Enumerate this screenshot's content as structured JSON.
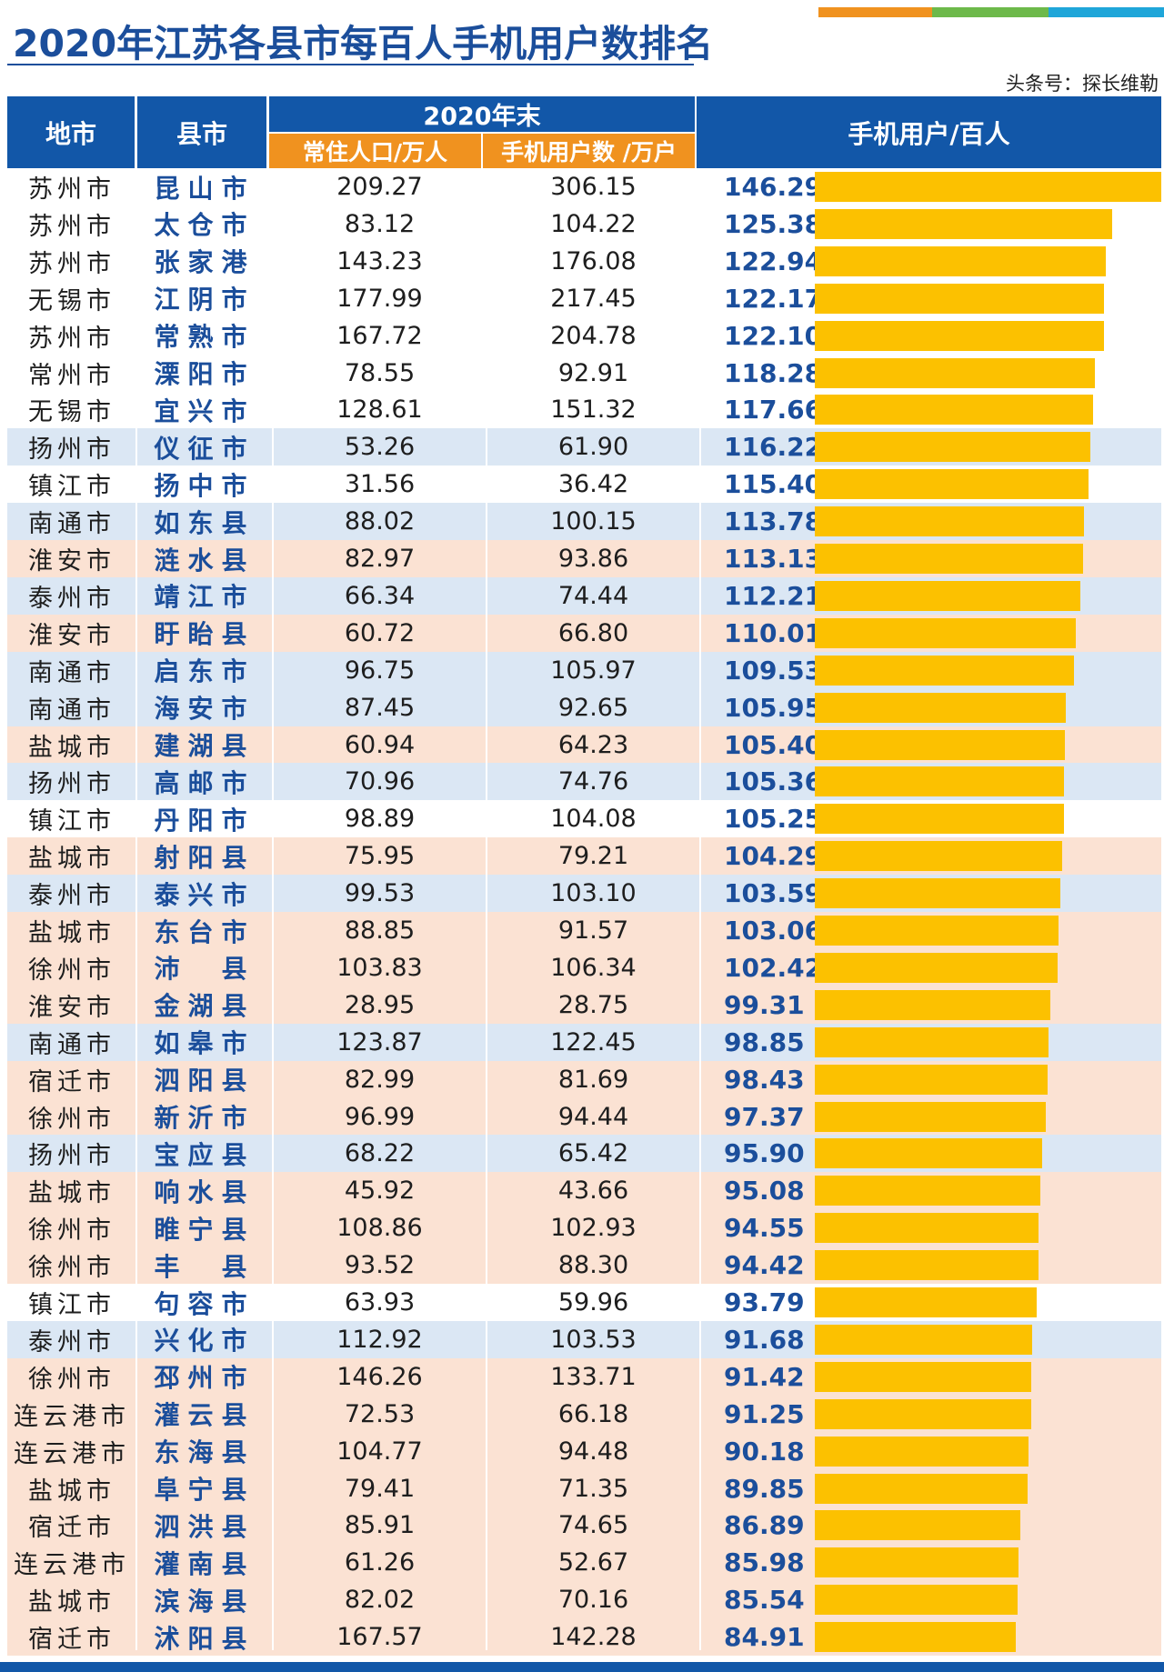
{
  "title": "2020年江苏各县市每百人手机用户数排名",
  "source": "头条号：探长维勒",
  "colors": {
    "blue": "#1257a8",
    "orange": "#f0921f",
    "bar": "#fcc100",
    "row_blue": "#dbe7f4",
    "row_peach": "#fbe2d3",
    "row_white": "#ffffff"
  },
  "header": {
    "city": "地市",
    "county": "县市",
    "year_group": "2020年末",
    "population": "常住人口/万人",
    "users": "手机用户数 /万户",
    "per100": "手机用户/百人"
  },
  "chart_data": {
    "type": "table",
    "value_axis": [
      0,
      146.29
    ],
    "columns": [
      "地市",
      "县市",
      "常住人口/万人",
      "手机用户数 /万户",
      "手机用户/百人"
    ],
    "rows": [
      {
        "city": "苏州市",
        "county": "昆山市",
        "pop": "209.27",
        "users": "306.15",
        "value": 146.29,
        "shade": "white"
      },
      {
        "city": "苏州市",
        "county": "太仓市",
        "pop": "83.12",
        "users": "104.22",
        "value": 125.38,
        "shade": "white"
      },
      {
        "city": "苏州市",
        "county": "张家港",
        "pop": "143.23",
        "users": "176.08",
        "value": 122.94,
        "shade": "white"
      },
      {
        "city": "无锡市",
        "county": "江阴市",
        "pop": "177.99",
        "users": "217.45",
        "value": 122.17,
        "shade": "white"
      },
      {
        "city": "苏州市",
        "county": "常熟市",
        "pop": "167.72",
        "users": "204.78",
        "value": 122.1,
        "shade": "white"
      },
      {
        "city": "常州市",
        "county": "溧阳市",
        "pop": "78.55",
        "users": "92.91",
        "value": 118.28,
        "shade": "white"
      },
      {
        "city": "无锡市",
        "county": "宜兴市",
        "pop": "128.61",
        "users": "151.32",
        "value": 117.66,
        "shade": "white"
      },
      {
        "city": "扬州市",
        "county": "仪征市",
        "pop": "53.26",
        "users": "61.90",
        "value": 116.22,
        "shade": "blue"
      },
      {
        "city": "镇江市",
        "county": "扬中市",
        "pop": "31.56",
        "users": "36.42",
        "value": 115.4,
        "shade": "white"
      },
      {
        "city": "南通市",
        "county": "如东县",
        "pop": "88.02",
        "users": "100.15",
        "value": 113.78,
        "shade": "blue"
      },
      {
        "city": "淮安市",
        "county": "涟水县",
        "pop": "82.97",
        "users": "93.86",
        "value": 113.13,
        "shade": "peach"
      },
      {
        "city": "泰州市",
        "county": "靖江市",
        "pop": "66.34",
        "users": "74.44",
        "value": 112.21,
        "shade": "blue"
      },
      {
        "city": "淮安市",
        "county": "盱眙县",
        "pop": "60.72",
        "users": "66.80",
        "value": 110.01,
        "shade": "peach"
      },
      {
        "city": "南通市",
        "county": "启东市",
        "pop": "96.75",
        "users": "105.97",
        "value": 109.53,
        "shade": "blue"
      },
      {
        "city": "南通市",
        "county": "海安市",
        "pop": "87.45",
        "users": "92.65",
        "value": 105.95,
        "shade": "blue"
      },
      {
        "city": "盐城市",
        "county": "建湖县",
        "pop": "60.94",
        "users": "64.23",
        "value": 105.4,
        "shade": "peach"
      },
      {
        "city": "扬州市",
        "county": "高邮市",
        "pop": "70.96",
        "users": "74.76",
        "value": 105.36,
        "shade": "blue"
      },
      {
        "city": "镇江市",
        "county": "丹阳市",
        "pop": "98.89",
        "users": "104.08",
        "value": 105.25,
        "shade": "white"
      },
      {
        "city": "盐城市",
        "county": "射阳县",
        "pop": "75.95",
        "users": "79.21",
        "value": 104.29,
        "shade": "peach"
      },
      {
        "city": "泰州市",
        "county": "泰兴市",
        "pop": "99.53",
        "users": "103.10",
        "value": 103.59,
        "shade": "blue"
      },
      {
        "city": "盐城市",
        "county": "东台市",
        "pop": "88.85",
        "users": "91.57",
        "value": 103.06,
        "shade": "peach"
      },
      {
        "city": "徐州市",
        "county": "沛　县",
        "pop": "103.83",
        "users": "106.34",
        "value": 102.42,
        "shade": "peach"
      },
      {
        "city": "淮安市",
        "county": "金湖县",
        "pop": "28.95",
        "users": "28.75",
        "value": 99.31,
        "shade": "peach"
      },
      {
        "city": "南通市",
        "county": "如皋市",
        "pop": "123.87",
        "users": "122.45",
        "value": 98.85,
        "shade": "blue"
      },
      {
        "city": "宿迁市",
        "county": "泗阳县",
        "pop": "82.99",
        "users": "81.69",
        "value": 98.43,
        "shade": "peach"
      },
      {
        "city": "徐州市",
        "county": "新沂市",
        "pop": "96.99",
        "users": "94.44",
        "value": 97.37,
        "shade": "peach"
      },
      {
        "city": "扬州市",
        "county": "宝应县",
        "pop": "68.22",
        "users": "65.42",
        "value": 95.9,
        "shade": "blue"
      },
      {
        "city": "盐城市",
        "county": "响水县",
        "pop": "45.92",
        "users": "43.66",
        "value": 95.08,
        "shade": "peach"
      },
      {
        "city": "徐州市",
        "county": "睢宁县",
        "pop": "108.86",
        "users": "102.93",
        "value": 94.55,
        "shade": "peach"
      },
      {
        "city": "徐州市",
        "county": "丰　县",
        "pop": "93.52",
        "users": "88.30",
        "value": 94.42,
        "shade": "peach"
      },
      {
        "city": "镇江市",
        "county": "句容市",
        "pop": "63.93",
        "users": "59.96",
        "value": 93.79,
        "shade": "white"
      },
      {
        "city": "泰州市",
        "county": "兴化市",
        "pop": "112.92",
        "users": "103.53",
        "value": 91.68,
        "shade": "blue"
      },
      {
        "city": "徐州市",
        "county": "邳州市",
        "pop": "146.26",
        "users": "133.71",
        "value": 91.42,
        "shade": "peach"
      },
      {
        "city": "连云港市",
        "county": "灌云县",
        "pop": "72.53",
        "users": "66.18",
        "value": 91.25,
        "shade": "peach"
      },
      {
        "city": "连云港市",
        "county": "东海县",
        "pop": "104.77",
        "users": "94.48",
        "value": 90.18,
        "shade": "peach"
      },
      {
        "city": "盐城市",
        "county": "阜宁县",
        "pop": "79.41",
        "users": "71.35",
        "value": 89.85,
        "shade": "peach"
      },
      {
        "city": "宿迁市",
        "county": "泗洪县",
        "pop": "85.91",
        "users": "74.65",
        "value": 86.89,
        "shade": "peach"
      },
      {
        "city": "连云港市",
        "county": "灌南县",
        "pop": "61.26",
        "users": "52.67",
        "value": 85.98,
        "shade": "peach"
      },
      {
        "city": "盐城市",
        "county": "滨海县",
        "pop": "82.02",
        "users": "70.16",
        "value": 85.54,
        "shade": "peach"
      },
      {
        "city": "宿迁市",
        "county": "沭阳县",
        "pop": "167.57",
        "users": "142.28",
        "value": 84.91,
        "shade": "peach"
      }
    ]
  }
}
